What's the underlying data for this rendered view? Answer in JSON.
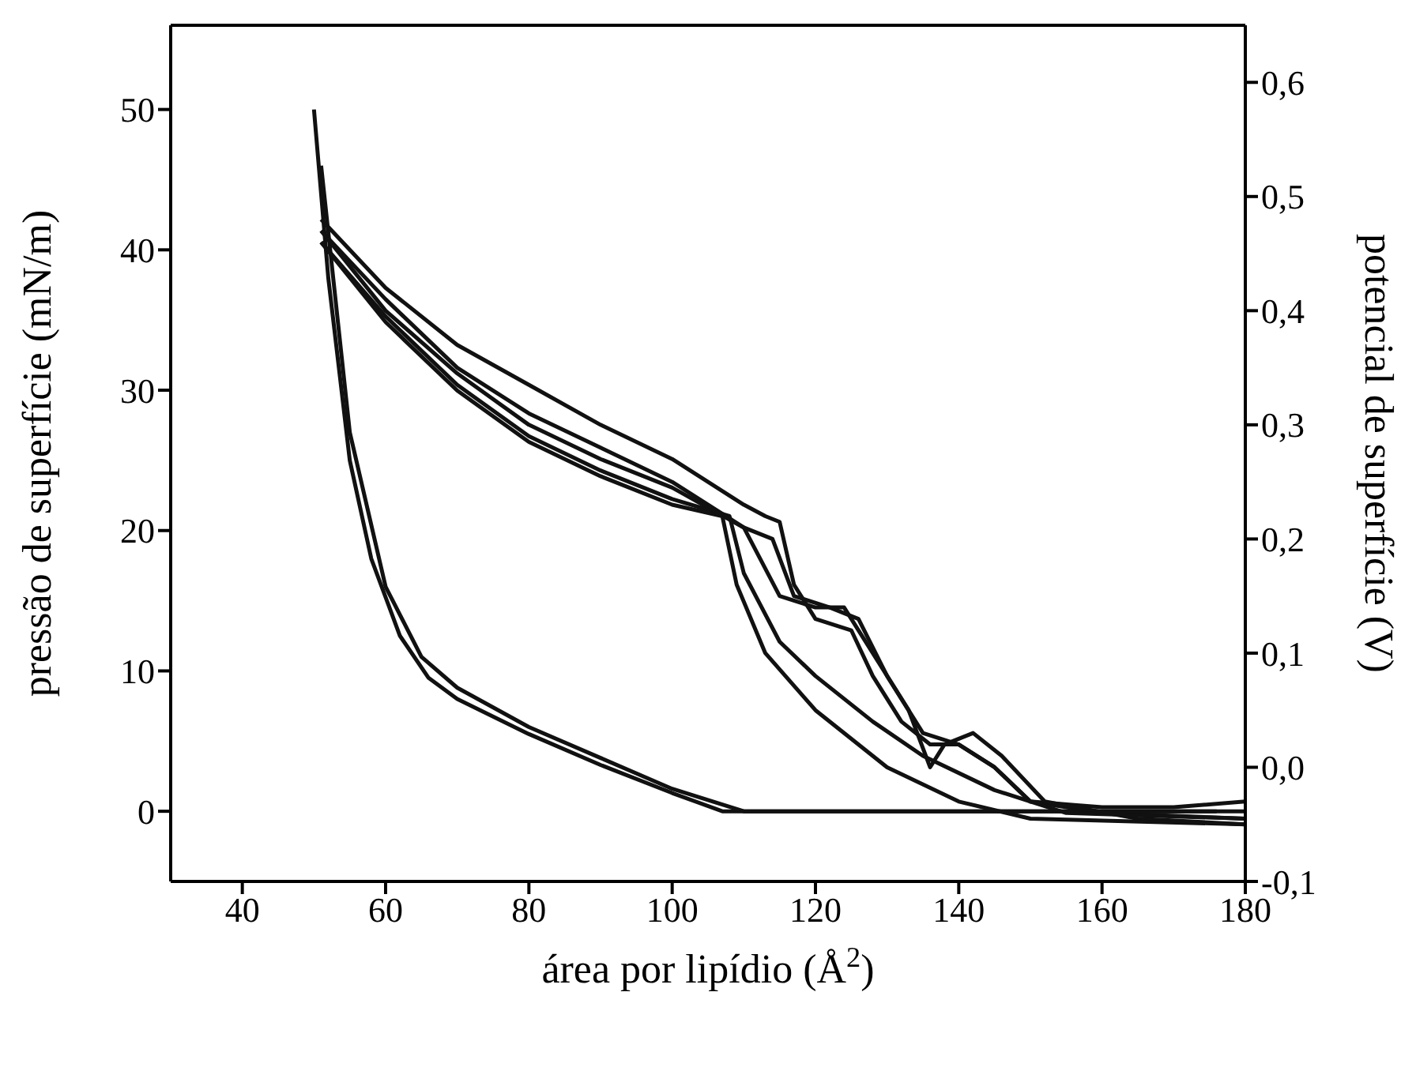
{
  "chart_data": {
    "type": "line",
    "xlabel": "área por lipídio (Å$^{2}$)",
    "ylabel": "pressão de superfície (mN/m)",
    "y2label": "potencial de superfície (V)",
    "xlim": [
      30,
      180
    ],
    "xticks": [
      40,
      60,
      80,
      100,
      120,
      140,
      160,
      180
    ],
    "ylim": [
      -5,
      56
    ],
    "yticks": [
      0,
      10,
      20,
      30,
      40,
      50
    ],
    "y2lim": [
      -0.1,
      0.65
    ],
    "y2ticks": [
      {
        "value": -0.1,
        "label": "-0,1"
      },
      {
        "value": 0,
        "label": "0,0"
      },
      {
        "value": 0.1,
        "label": "0,1"
      },
      {
        "value": 0.2,
        "label": "0,2"
      },
      {
        "value": 0.3,
        "label": "0,3"
      },
      {
        "value": 0.4,
        "label": "0,4"
      },
      {
        "value": 0.5,
        "label": "0,5"
      },
      {
        "value": 0.6,
        "label": "0,6"
      }
    ],
    "series": [
      {
        "color": "#111111",
        "x": [
          50,
          52,
          55,
          58,
          62,
          66,
          70,
          80,
          90,
          100,
          107,
          180
        ],
        "values": [
          50,
          38,
          25,
          18,
          12.5,
          9.5,
          8,
          5.5,
          3.3,
          1.3,
          0,
          0
        ]
      },
      {
        "color": "#111111",
        "x": [
          51,
          55,
          60,
          65,
          70,
          80,
          90,
          100,
          110,
          176
        ],
        "values": [
          46,
          27,
          16,
          11,
          8.8,
          6,
          3.8,
          1.6,
          0,
          0
        ]
      },
      {
        "color": "#111111",
        "axis": "y2",
        "x": [
          51,
          60,
          70,
          80,
          90,
          100,
          110,
          113,
          115,
          117,
          120,
          125,
          128,
          132,
          136,
          140,
          145,
          150,
          160,
          170,
          180
        ],
        "values": [
          0.48,
          0.42,
          0.37,
          0.335,
          0.3,
          0.27,
          0.23,
          0.22,
          0.215,
          0.16,
          0.13,
          0.12,
          0.08,
          0.04,
          0.02,
          0.02,
          0,
          -0.03,
          -0.035,
          -0.035,
          -0.03
        ]
      },
      {
        "color": "#111111",
        "axis": "y2",
        "x": [
          51,
          60,
          70,
          80,
          90,
          100,
          110,
          114,
          117,
          122,
          126,
          130,
          135,
          140,
          145,
          150,
          160,
          180
        ],
        "values": [
          0.47,
          0.41,
          0.35,
          0.31,
          0.28,
          0.25,
          0.21,
          0.2,
          0.15,
          0.14,
          0.13,
          0.08,
          0.03,
          0.02,
          0,
          -0.03,
          -0.04,
          -0.045
        ]
      },
      {
        "color": "#111111",
        "axis": "y2",
        "x": [
          51,
          60,
          70,
          80,
          90,
          100,
          110,
          115,
          120,
          124,
          128,
          133,
          136,
          138,
          142,
          146,
          152,
          165,
          180
        ],
        "values": [
          0.47,
          0.4,
          0.345,
          0.3,
          0.27,
          0.245,
          0.21,
          0.15,
          0.14,
          0.14,
          0.1,
          0.05,
          0,
          0.02,
          0.03,
          0.01,
          -0.03,
          -0.045,
          -0.05
        ]
      },
      {
        "color": "#111111",
        "axis": "y2",
        "x": [
          51,
          60,
          70,
          80,
          90,
          100,
          108,
          110,
          115,
          120,
          128,
          135,
          145,
          155,
          180
        ],
        "values": [
          0.46,
          0.395,
          0.335,
          0.29,
          0.26,
          0.235,
          0.22,
          0.17,
          0.11,
          0.08,
          0.04,
          0.01,
          -0.02,
          -0.04,
          -0.045
        ]
      },
      {
        "color": "#111111",
        "axis": "y2",
        "x": [
          51,
          60,
          70,
          80,
          90,
          100,
          107,
          109,
          113,
          120,
          130,
          140,
          150,
          180
        ],
        "values": [
          0.46,
          0.39,
          0.33,
          0.285,
          0.255,
          0.23,
          0.22,
          0.16,
          0.1,
          0.05,
          0,
          -0.03,
          -0.045,
          -0.05
        ]
      }
    ]
  }
}
